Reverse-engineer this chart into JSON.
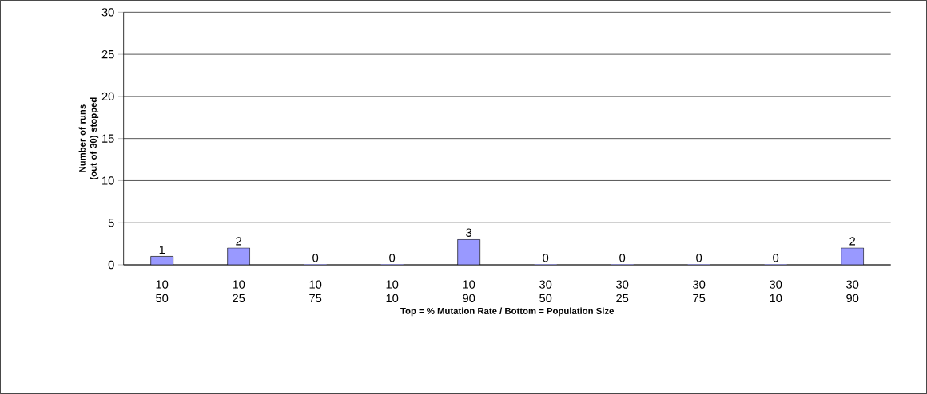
{
  "chart_data": {
    "type": "bar",
    "xlabel": "Top = % Mutation Rate / Bottom = Population Size",
    "ylabel": "Number of runs (out of 30) stopped",
    "categories": [
      "10 50",
      "10 25",
      "10 75",
      "10 10",
      "10 90",
      "30 50",
      "30 25",
      "30 75",
      "30 10",
      "30 90"
    ],
    "values": [
      1,
      2,
      0,
      0,
      3,
      0,
      0,
      0,
      0,
      2
    ],
    "color": "#9999ff",
    "ylim": [
      0,
      30
    ],
    "yticks": [
      0,
      5,
      10,
      15,
      20,
      25,
      30
    ],
    "grid": "y",
    "data_labels": true
  }
}
